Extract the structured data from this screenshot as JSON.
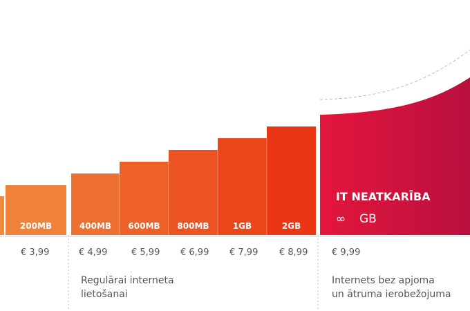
{
  "chart_data": {
    "type": "bar",
    "categories": [
      "200MB",
      "400MB",
      "600MB",
      "800MB",
      "1GB",
      "2GB"
    ],
    "prices": [
      "€ 3,99",
      "€ 4,99",
      "€ 5,99",
      "€ 6,99",
      "€ 7,99",
      "€ 8,99"
    ],
    "unlimited": {
      "title": "IT NEATKARĪBA",
      "infinity": "∞",
      "unit": "GB",
      "price": "€ 9,99"
    },
    "groups": [
      {
        "lines": [
          "Regulārai interneta",
          "lietošanai"
        ]
      },
      {
        "lines": [
          "Internets bez apjoma",
          "un ātruma ierobežojuma"
        ]
      }
    ],
    "colors": {
      "bar_start": "#f08a3e",
      "bar_end": "#ea2f10",
      "unlimited_start": "#e4163c",
      "unlimited_end": "#b80f3e",
      "text": "#555555",
      "divider": "#bbbbbb"
    }
  }
}
